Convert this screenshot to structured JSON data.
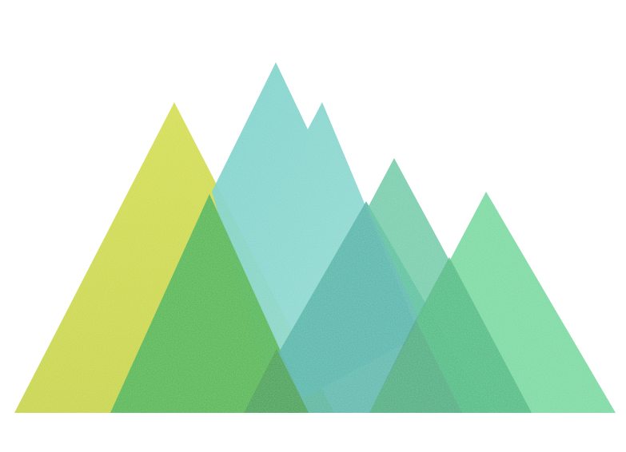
{
  "image": {
    "background": "#ffffff",
    "subject": "mountain-logo-illustration",
    "colors": {
      "lime": "#cbd92f",
      "green_dark": "#3ab03d",
      "teal_light": "#6fd0c9",
      "teal_mid": "#45b8ac",
      "sea_green": "#47c39b",
      "mint": "#58d38f",
      "green_mid": "#35b57a"
    },
    "layers": [
      {
        "name": "lime-peak"
      },
      {
        "name": "twin-teal-peak"
      },
      {
        "name": "green-foreground-peak"
      },
      {
        "name": "center-teal-peak"
      },
      {
        "name": "sea-green-peak"
      },
      {
        "name": "mint-right-peak"
      },
      {
        "name": "overlap-shade"
      }
    ]
  }
}
